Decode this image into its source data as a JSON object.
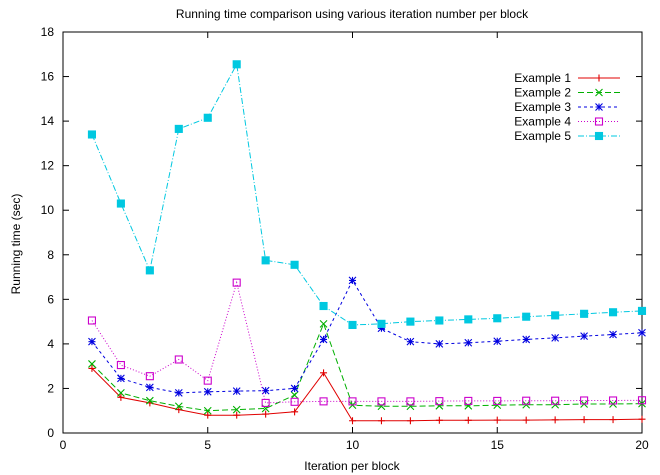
{
  "chart_data": {
    "type": "line",
    "title": "Running time comparison using various iteration number per block",
    "xlabel": "Iteration per block",
    "ylabel": "Running time (sec)",
    "xlim": [
      0,
      20
    ],
    "ylim": [
      0,
      18
    ],
    "xticks": [
      0,
      5,
      10,
      15,
      20
    ],
    "yticks": [
      0,
      2,
      4,
      6,
      8,
      10,
      12,
      14,
      16,
      18
    ],
    "grid": false,
    "legend_position": "top-right",
    "x": [
      1,
      2,
      3,
      4,
      5,
      6,
      7,
      8,
      9,
      10,
      11,
      12,
      13,
      14,
      15,
      16,
      17,
      18,
      19,
      20
    ],
    "series": [
      {
        "name": "Example 1",
        "color": "#e00000",
        "dash": "solid",
        "marker": "plus",
        "values": [
          2.9,
          1.6,
          1.35,
          1.05,
          0.8,
          0.8,
          0.85,
          0.95,
          2.7,
          0.55,
          0.55,
          0.55,
          0.57,
          0.57,
          0.58,
          0.58,
          0.59,
          0.6,
          0.6,
          0.62
        ]
      },
      {
        "name": "Example 2",
        "color": "#00b000",
        "dash": "6,3",
        "marker": "cross",
        "values": [
          3.1,
          1.8,
          1.45,
          1.2,
          1.0,
          1.05,
          1.1,
          1.7,
          4.9,
          1.25,
          1.2,
          1.2,
          1.22,
          1.22,
          1.25,
          1.27,
          1.27,
          1.3,
          1.3,
          1.32
        ]
      },
      {
        "name": "Example 3",
        "color": "#0000e0",
        "dash": "3,3",
        "marker": "star",
        "values": [
          4.1,
          2.45,
          2.05,
          1.8,
          1.85,
          1.88,
          1.9,
          2.0,
          4.2,
          6.85,
          4.7,
          4.1,
          4.0,
          4.05,
          4.12,
          4.2,
          4.27,
          4.35,
          4.42,
          4.5
        ]
      },
      {
        "name": "Example 4",
        "color": "#cc00cc",
        "dash": "1,2",
        "marker": "square",
        "values": [
          5.05,
          3.05,
          2.55,
          3.3,
          2.35,
          6.75,
          1.35,
          1.4,
          1.42,
          1.42,
          1.42,
          1.42,
          1.43,
          1.44,
          1.44,
          1.45,
          1.45,
          1.46,
          1.46,
          1.47
        ]
      },
      {
        "name": "Example 5",
        "color": "#00c8e0",
        "dash": "6,2,1,2",
        "marker": "filled-square",
        "values": [
          13.4,
          10.3,
          7.3,
          13.65,
          14.15,
          16.55,
          7.75,
          7.55,
          5.7,
          4.85,
          4.9,
          5.0,
          5.05,
          5.1,
          5.15,
          5.22,
          5.28,
          5.35,
          5.42,
          5.48
        ]
      }
    ]
  }
}
